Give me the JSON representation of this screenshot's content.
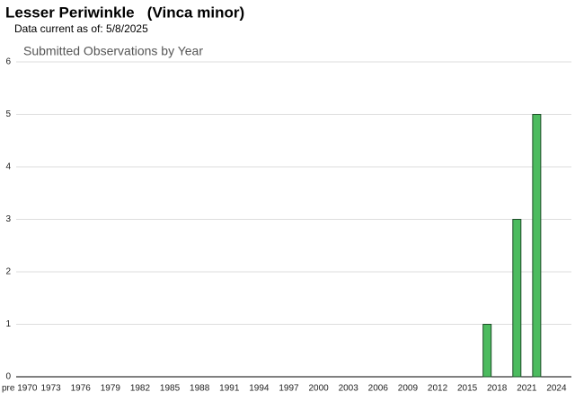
{
  "header": {
    "title": "Lesser Periwinkle   (Vinca minor)",
    "subtitle": "Data current as of: 5/8/2025"
  },
  "chart_data": {
    "type": "bar",
    "title": "Submitted Observations by Year",
    "categories": [
      "pre 1970",
      null,
      null,
      "1973",
      null,
      null,
      "1976",
      null,
      null,
      "1979",
      null,
      null,
      "1982",
      null,
      null,
      "1985",
      null,
      null,
      "1988",
      null,
      null,
      "1991",
      null,
      null,
      "1994",
      null,
      null,
      "1997",
      null,
      null,
      "2000",
      null,
      null,
      "2003",
      null,
      null,
      "2006",
      null,
      null,
      "2009",
      null,
      null,
      "2012",
      null,
      null,
      "2015",
      null,
      null,
      "2018",
      null,
      null,
      "2021",
      null,
      null,
      "2024",
      null
    ],
    "values": [
      0,
      0,
      0,
      0,
      0,
      0,
      0,
      0,
      0,
      0,
      0,
      0,
      0,
      0,
      0,
      0,
      0,
      0,
      0,
      0,
      0,
      0,
      0,
      0,
      0,
      0,
      0,
      0,
      0,
      0,
      0,
      0,
      0,
      0,
      0,
      0,
      0,
      0,
      0,
      0,
      0,
      0,
      0,
      0,
      0,
      0,
      0,
      1,
      0,
      0,
      3,
      0,
      5,
      0,
      0,
      0
    ],
    "color": "#4cbb5f",
    "ylim": [
      0,
      6
    ],
    "yticks": [
      0,
      1,
      2,
      3,
      4,
      5,
      6
    ],
    "grid": true
  }
}
